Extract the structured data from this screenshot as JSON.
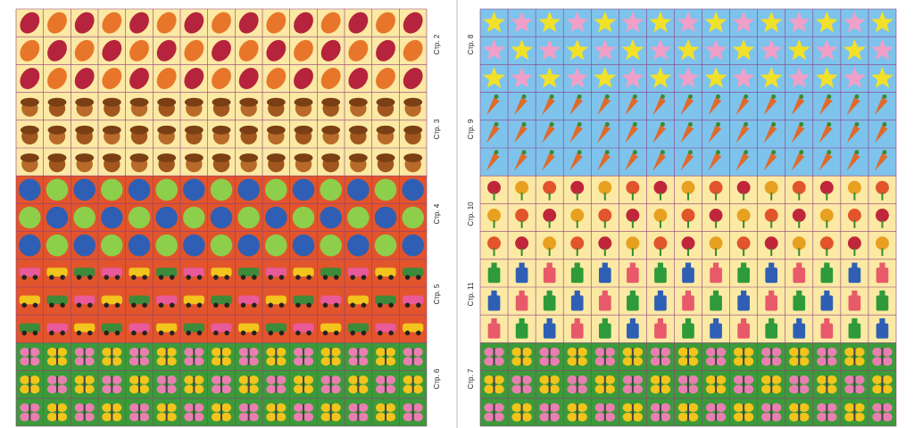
{
  "left_panel": {
    "labels": [
      "Стр. 2",
      "Стр. 3",
      "Стр. 4",
      "Стр. 5",
      "Стр. 6"
    ]
  },
  "right_panel": {
    "labels": [
      "Стр. 8",
      "Стр. 9",
      "Стр. 10",
      "Стр. 11",
      "Стр. 7"
    ]
  }
}
